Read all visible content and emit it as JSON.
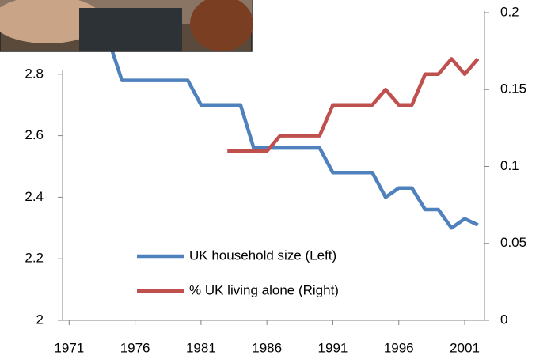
{
  "chart_data": {
    "type": "line",
    "x": [
      1974,
      1975,
      1976,
      1977,
      1978,
      1979,
      1980,
      1981,
      1982,
      1983,
      1984,
      1985,
      1986,
      1987,
      1988,
      1989,
      1990,
      1991,
      1992,
      1993,
      1994,
      1995,
      1996,
      1997,
      1998,
      1999,
      2000,
      2001,
      2002
    ],
    "series": [
      {
        "name": "UK household size (Left)",
        "color": "#4f81bd",
        "values": [
          2.91,
          2.78,
          2.78,
          2.78,
          2.78,
          2.78,
          2.78,
          2.7,
          2.7,
          2.7,
          2.7,
          2.56,
          2.56,
          2.56,
          2.56,
          2.56,
          2.56,
          2.48,
          2.48,
          2.48,
          2.48,
          2.4,
          2.43,
          2.43,
          2.36,
          2.36,
          2.3,
          2.33,
          2.31
        ]
      },
      {
        "name": "% UK living alone (Right)",
        "color": "#c0504d",
        "axis": "y2",
        "values": [
          null,
          null,
          null,
          null,
          null,
          null,
          null,
          null,
          null,
          0.11,
          0.11,
          0.11,
          0.11,
          0.12,
          0.12,
          0.12,
          0.12,
          0.14,
          0.14,
          0.14,
          0.14,
          0.15,
          0.14,
          0.14,
          0.16,
          0.16,
          0.17,
          0.16,
          0.17
        ]
      }
    ],
    "xlim": [
      1970.5,
      2002.5
    ],
    "xticks": [
      1971,
      1976,
      1981,
      1986,
      1991,
      1996,
      2001
    ],
    "ylim": [
      2,
      3
    ],
    "yticks": [
      2,
      2.2,
      2.4,
      2.6,
      2.8
    ],
    "y2lim": [
      0,
      0.2
    ],
    "y2ticks": [
      0,
      0.05,
      0.1,
      0.15,
      0.2
    ],
    "legend": "bottom-center",
    "grid": false
  }
}
